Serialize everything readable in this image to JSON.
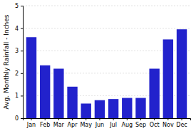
{
  "chart_data": {
    "type": "bar",
    "categories": [
      "Jan",
      "Feb",
      "Mar",
      "Apr",
      "May",
      "Jun",
      "Jul",
      "Aug",
      "Sep",
      "Oct",
      "Nov",
      "Dec"
    ],
    "values": [
      3.6,
      2.35,
      2.2,
      1.4,
      0.65,
      0.8,
      0.85,
      0.9,
      0.9,
      2.2,
      3.5,
      3.95
    ],
    "color": "#2222cc",
    "ylabel": "Avg. Monthly Rainfall - Inches",
    "ylim": [
      0,
      5
    ],
    "yticks": [
      0,
      1,
      2,
      3,
      4,
      5
    ],
    "grid": true
  }
}
